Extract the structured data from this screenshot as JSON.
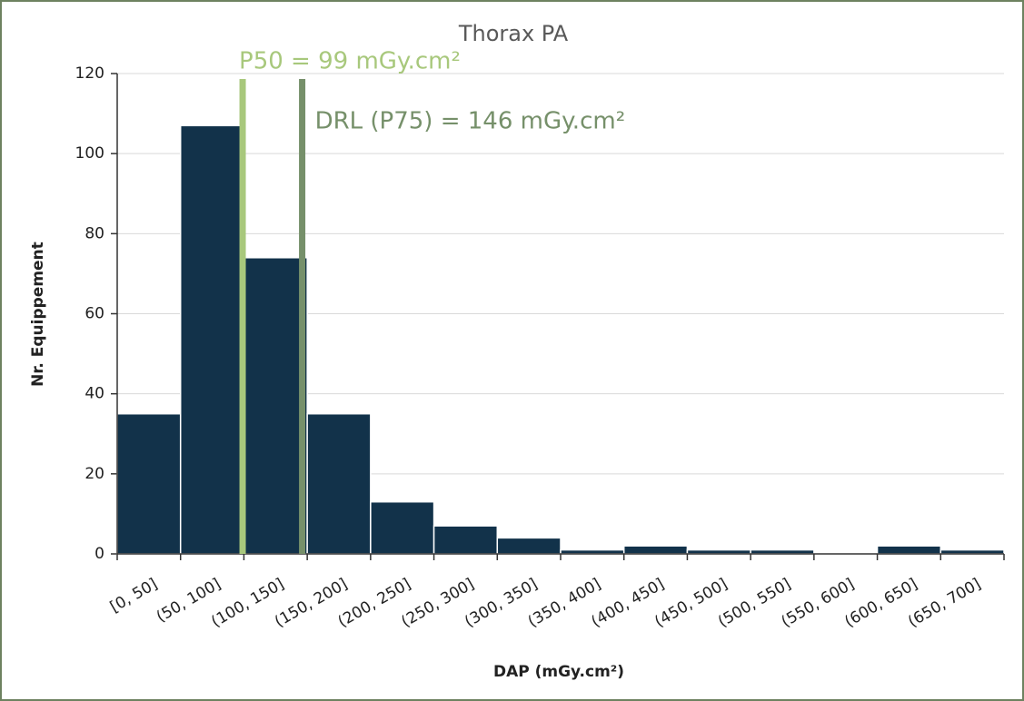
{
  "chart_data": {
    "type": "histogram",
    "title": "Thorax PA",
    "xlabel": "DAP (mGy.cm²)",
    "ylabel": "Nr. Equippement",
    "categories": [
      "[0, 50]",
      "(50, 100]",
      "(100, 150]",
      "(150, 200]",
      "(200, 250]",
      "(250, 300]",
      "(300, 350]",
      "(350, 400]",
      "(400, 450]",
      "(450, 500]",
      "(500, 550]",
      "(550, 600]",
      "(600, 650]",
      "(650, 700]"
    ],
    "values": [
      35,
      107,
      74,
      35,
      13,
      7,
      4,
      1,
      2,
      1,
      1,
      0,
      2,
      1
    ],
    "color": "#12324a",
    "ylim": [
      0,
      120
    ],
    "yticks": [
      0,
      20,
      40,
      60,
      80,
      100,
      120
    ],
    "grid": true,
    "xlim": [
      0,
      700
    ],
    "reference_lines": [
      {
        "label": "P50 = 99 mGy.cm²",
        "value": 99,
        "color": "#a8c87c"
      },
      {
        "label": "DRL (P75) = 146 mGy.cm²",
        "value": 146,
        "color": "#76906a"
      }
    ]
  }
}
